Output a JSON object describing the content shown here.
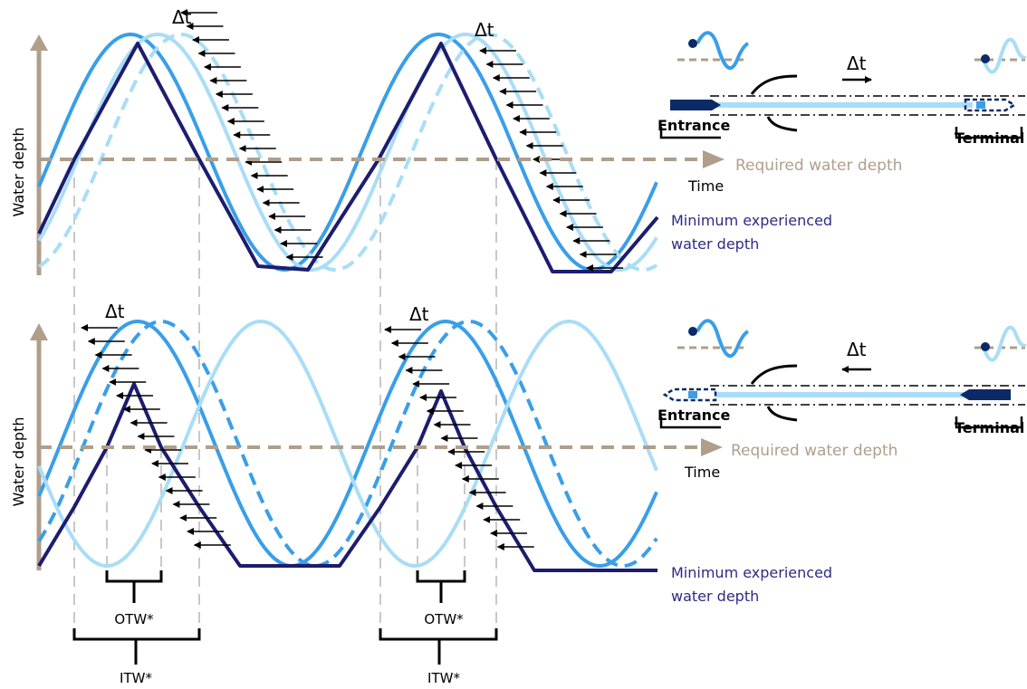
{
  "colors": {
    "dark": "#1c1d6e",
    "mid": "#3a9ee8",
    "light": "#a9ddf7",
    "required": "#b09e8b",
    "axis": "#b09e8b",
    "vguide": "#c8c8c8",
    "arrow": "#000000",
    "navy_block": "#0b2a66",
    "min_label": "#2e2a86"
  },
  "top": {
    "ylabel": "Water depth",
    "xlabel": "Time",
    "required_label": "Required water depth",
    "min_label_line1": "Minimum experienced",
    "min_label_line2": "water depth",
    "delta_t_1": "Δt",
    "delta_t_2": "Δt",
    "inset": {
      "delta_t": "Δt",
      "entrance": "Entrance",
      "terminal": "Terminal",
      "direction": "to-terminal"
    }
  },
  "bottom": {
    "ylabel": "Water depth",
    "xlabel": "Time",
    "required_label": "Required water depth",
    "min_label_line1": "Minimum experienced",
    "min_label_line2": "water depth",
    "delta_t_1": "Δt",
    "delta_t_2": "Δt",
    "otw_1": "OTW*",
    "otw_2": "OTW*",
    "itw_1": "ITW*",
    "itw_2": "ITW*",
    "inset": {
      "delta_t": "Δt",
      "entrance": "Entrance",
      "terminal": "Terminal",
      "direction": "to-entrance"
    }
  }
}
